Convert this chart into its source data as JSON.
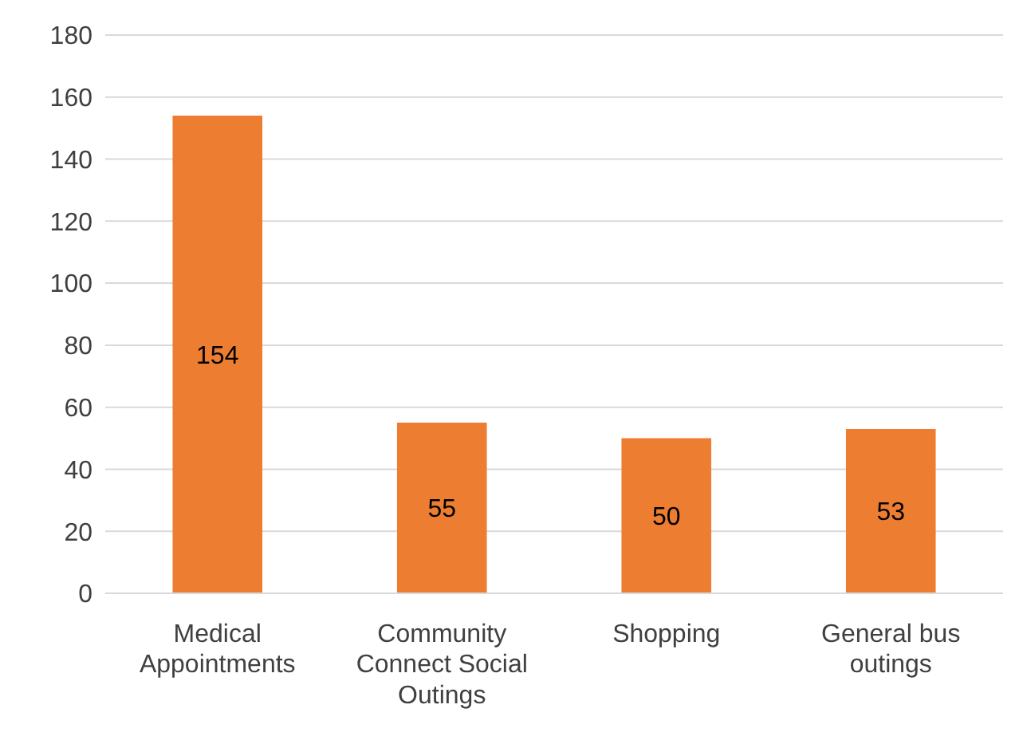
{
  "chart_data": {
    "type": "bar",
    "categories": [
      "Medical Appointments",
      "Community Connect Social Outings",
      "Shopping",
      "General bus outings"
    ],
    "values": [
      154,
      55,
      50,
      53
    ],
    "color": "#ed7d31",
    "ylim": [
      0,
      180
    ],
    "yticks": [
      0,
      20,
      40,
      60,
      80,
      100,
      120,
      140,
      160,
      180
    ],
    "grid": "y",
    "data_labels": true
  }
}
